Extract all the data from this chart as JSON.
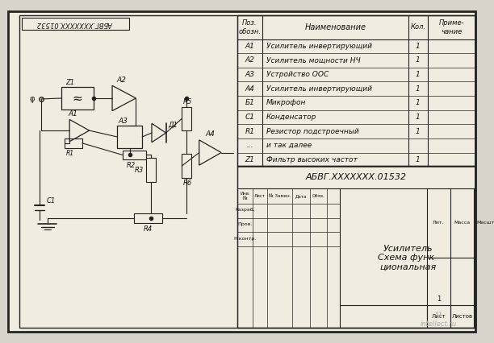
{
  "bg_color": "#d8d4cc",
  "paper_color": "#f0ece0",
  "border_color": "#222222",
  "schematic_label": "АБВГ.XXXXXXX.01532",
  "table_rows": [
    [
      "А1",
      "Усилитель инвертирующий",
      "1",
      ""
    ],
    [
      "А2",
      "Усилитель мощности НЧ",
      "1",
      ""
    ],
    [
      "А3",
      "Устройство ООС",
      "1",
      ""
    ],
    [
      "А4",
      "Усилитель инвертирующий",
      "1",
      ""
    ],
    [
      "Б1",
      "Микрофон",
      "1",
      ""
    ],
    [
      "С1",
      "Конденсатор",
      "1",
      ""
    ],
    [
      "R1",
      "Резистор подстроечный",
      "1",
      ""
    ],
    [
      "...",
      "и так далее",
      "",
      ""
    ],
    [
      "Z1",
      "Фильтр высоких частот",
      "1",
      ""
    ]
  ],
  "stamp_code": "АБВГ.XXXXXXX.01532",
  "stamp_name": "Усилитель\nСхема функ-\nциональная"
}
